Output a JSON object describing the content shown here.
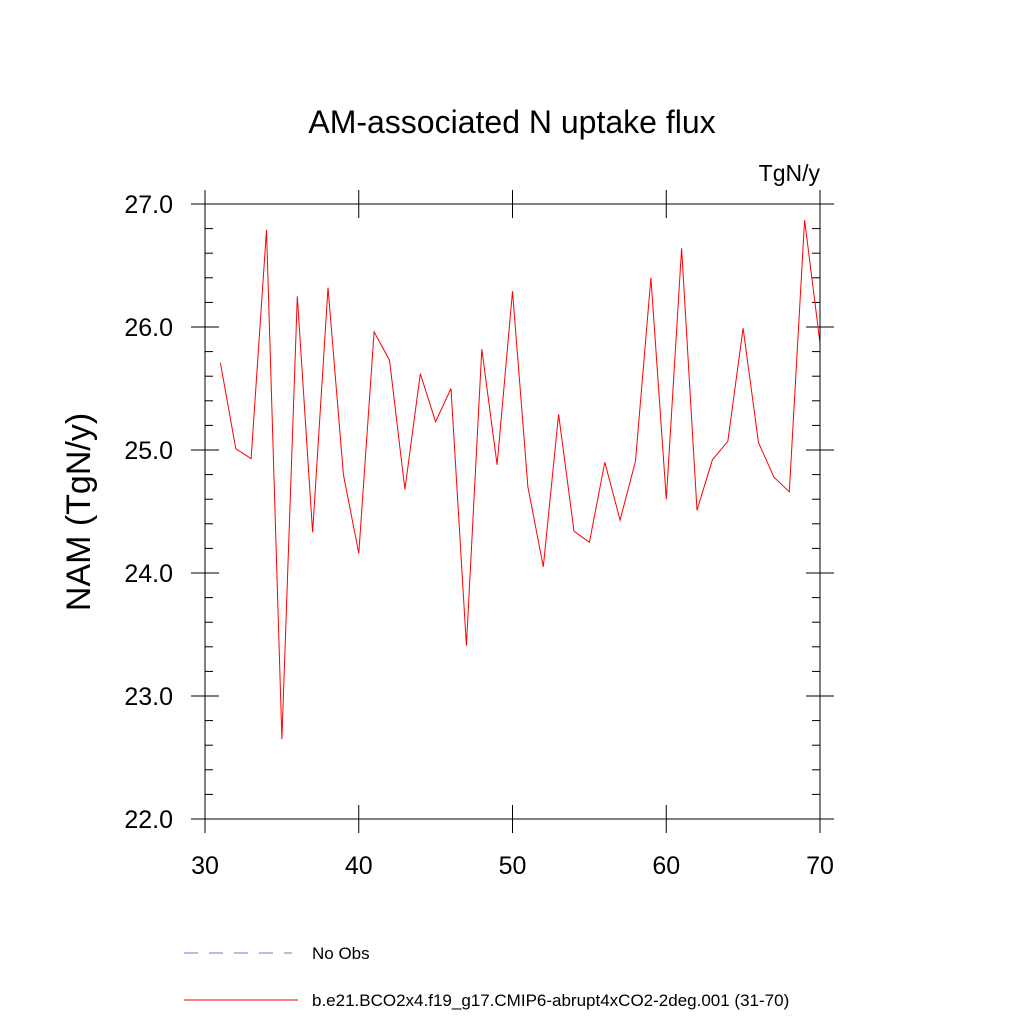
{
  "chart_data": {
    "type": "line",
    "title": "AM-associated N uptake flux",
    "units": "TgN/y",
    "ylabel": "NAM  (TgN/y)",
    "xlabel": "",
    "xlim": [
      30,
      70
    ],
    "ylim": [
      22.0,
      27.0
    ],
    "x_ticks": [
      "30",
      "40",
      "50",
      "60",
      "70"
    ],
    "y_ticks": [
      "22.0",
      "23.0",
      "24.0",
      "25.0",
      "26.0",
      "27.0"
    ],
    "grid": false,
    "legend_position": "bottom",
    "colors": {
      "model": "#ff0000",
      "obs": "#7777cc"
    },
    "legend": [
      {
        "label": "No Obs",
        "style": "dashed",
        "color": "#7777cc"
      },
      {
        "label": "b.e21.BCO2x4.f19_g17.CMIP6-abrupt4xCO2-2deg.001 (31-70)",
        "style": "solid",
        "color": "#ff0000"
      }
    ],
    "series": [
      {
        "name": "b.e21.BCO2x4.f19_g17.CMIP6-abrupt4xCO2-2deg.001 (31-70)",
        "x": [
          31,
          32,
          33,
          34,
          35,
          36,
          37,
          38,
          39,
          40,
          41,
          42,
          43,
          44,
          45,
          46,
          47,
          48,
          49,
          50,
          51,
          52,
          53,
          54,
          55,
          56,
          57,
          58,
          59,
          60,
          61,
          62,
          63,
          64,
          65,
          66,
          67,
          68,
          69,
          70
        ],
        "values": [
          25.71,
          25.01,
          24.93,
          26.79,
          22.65,
          26.25,
          24.33,
          26.32,
          24.8,
          24.16,
          25.96,
          25.73,
          24.68,
          25.62,
          25.23,
          25.5,
          23.41,
          25.82,
          24.88,
          26.29,
          24.7,
          24.05,
          25.29,
          24.34,
          24.25,
          24.9,
          24.43,
          24.91,
          26.4,
          24.6,
          26.64,
          24.51,
          24.92,
          25.07,
          25.99,
          25.06,
          24.78,
          24.66,
          26.87,
          25.87
        ]
      }
    ]
  }
}
